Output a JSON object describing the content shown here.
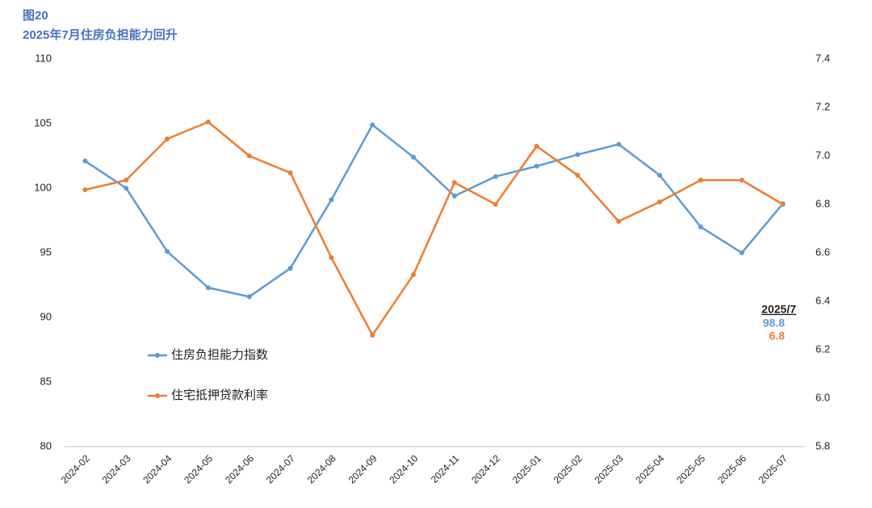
{
  "chart_data": {
    "type": "line",
    "title": "图20",
    "subtitle": "2025年7月住房负担能力回升",
    "categories": [
      "2024-02",
      "2024-03",
      "2024-04",
      "2024-05",
      "2024-06",
      "2024-07",
      "2024-08",
      "2024-09",
      "2024-10",
      "2024-11",
      "2024-12",
      "2025-01",
      "2025-02",
      "2025-03",
      "2025-04",
      "2025-05",
      "2025-06",
      "2025-07"
    ],
    "series": [
      {
        "name": "住房负担能力指数",
        "color": "#5b9bd5",
        "axis": "y",
        "values": [
          102.1,
          100.0,
          95.1,
          92.3,
          91.6,
          93.8,
          99.1,
          104.9,
          102.4,
          99.4,
          100.9,
          101.7,
          102.6,
          103.4,
          101.0,
          97.0,
          95.0,
          98.8
        ]
      },
      {
        "name": "住宅抵押贷款利率",
        "color": "#ed7d31",
        "axis": "y2",
        "values": [
          6.86,
          6.9,
          7.07,
          7.14,
          7.0,
          6.93,
          6.58,
          6.26,
          6.51,
          6.89,
          6.8,
          7.04,
          6.92,
          6.73,
          6.81,
          6.9,
          6.9,
          6.8
        ]
      }
    ],
    "ylim": [
      80,
      110
    ],
    "yticks": [
      80,
      85,
      90,
      95,
      100,
      105,
      110
    ],
    "y2lim": [
      5.8,
      7.4
    ],
    "y2ticks": [
      5.8,
      {
        "value": 6,
        "label": "6.0"
      },
      6.2,
      6.4,
      6.6,
      6.8,
      {
        "value": 7,
        "label": "7.0"
      },
      7.2,
      7.4
    ],
    "annotation": {
      "label": "2025/7",
      "values": [
        "98.8",
        "6.8"
      ]
    },
    "grid": false
  }
}
